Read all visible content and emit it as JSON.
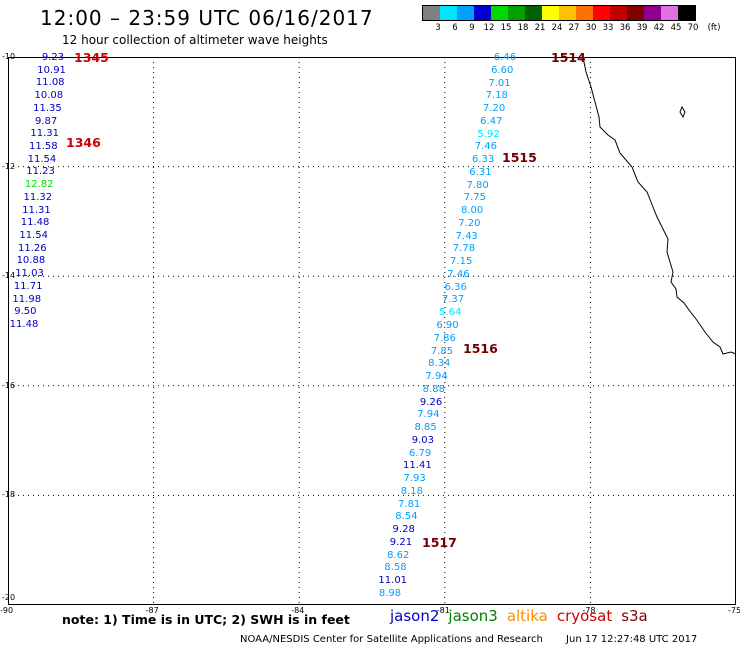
{
  "title": "12:00 – 23:59 UTC 06/16/2017",
  "subtitle": "12 hour collection of altimeter wave heights",
  "color_scale": {
    "colors": [
      "#808080",
      "#00e5ff",
      "#00a0ff",
      "#0000d0",
      "#00d800",
      "#00a000",
      "#006000",
      "#ffff00",
      "#ffc000",
      "#ff7000",
      "#ff0000",
      "#c00000",
      "#800000",
      "#900090",
      "#e070e0",
      "#000000"
    ],
    "labels": [
      "3",
      "6",
      "9",
      "12",
      "15",
      "18",
      "21",
      "24",
      "27",
      "30",
      "33",
      "36",
      "39",
      "42",
      "45",
      "70"
    ],
    "unit": "(ft)"
  },
  "map": {
    "lat_range": [
      -20,
      -10
    ],
    "lon_range": [
      -90,
      -75
    ],
    "lat_ticks": [
      "-10",
      "-12",
      "-14",
      "-16",
      "-18",
      "-20"
    ],
    "lon_ticks": [
      "-90",
      "-87",
      "-84",
      "-81",
      "-78",
      "-75"
    ]
  },
  "tracks": [
    {
      "satellite": "jason2",
      "color_group": "west",
      "values": [
        "9.23",
        "10.91",
        "11.08",
        "10.08",
        "11.35",
        "9.87",
        "11.31",
        "11.58",
        "11.54",
        "11.23",
        "12.82",
        "11.32",
        "11.31",
        "11.48",
        "11.54",
        "11.26",
        "10.88",
        "11.03",
        "11.71",
        "11.98",
        "9.50",
        "11.48"
      ],
      "colors": [
        "#0000c0",
        "#0000c0",
        "#0000c0",
        "#0000c0",
        "#0000c0",
        "#0000c0",
        "#0000c0",
        "#0000c0",
        "#0000c0",
        "#0000c0",
        "#00e000",
        "#0000c0",
        "#0000c0",
        "#0000c0",
        "#0000c0",
        "#0000c0",
        "#0000c0",
        "#0000c0",
        "#0000c0",
        "#0000c0",
        "#0000c0",
        "#0000c0"
      ]
    },
    {
      "satellite": "jason2",
      "color_group": "east",
      "values": [
        "6.46",
        "6.60",
        "7.01",
        "7.18",
        "7.20",
        "6.47",
        "5.92",
        "7.46",
        "6.33",
        "6.31",
        "7.80",
        "7.75",
        "8.00",
        "7.20",
        "7.43",
        "7.78",
        "7.15",
        "7.46",
        "6.36",
        "7.37",
        "5.64",
        "6.90",
        "7.86",
        "7.85",
        "8.34",
        "7.94",
        "8.88",
        "9.26",
        "7.94",
        "8.85",
        "9.03",
        "6.79",
        "11.41",
        "7.93",
        "8.18",
        "7.81",
        "8.54",
        "9.28",
        "9.21",
        "8.62",
        "8.58",
        "11.01",
        "8.98"
      ],
      "colors": [
        "#00a0ff",
        "#00a0ff",
        "#00a0ff",
        "#00a0ff",
        "#00a0ff",
        "#00a0ff",
        "#00e5ff",
        "#00a0ff",
        "#00a0ff",
        "#00a0ff",
        "#00a0ff",
        "#00a0ff",
        "#00a0ff",
        "#00a0ff",
        "#00a0ff",
        "#00a0ff",
        "#00a0ff",
        "#00a0ff",
        "#00a0ff",
        "#00a0ff",
        "#00e5ff",
        "#00a0ff",
        "#00a0ff",
        "#00a0ff",
        "#00a0ff",
        "#00a0ff",
        "#00a0ff",
        "#0000c0",
        "#00a0ff",
        "#00a0ff",
        "#0000c0",
        "#00a0ff",
        "#0000c0",
        "#00a0ff",
        "#00a0ff",
        "#00a0ff",
        "#00a0ff",
        "#0000c0",
        "#0000c0",
        "#00a0ff",
        "#00a0ff",
        "#0000c0",
        "#00a0ff"
      ]
    }
  ],
  "pass_labels": [
    "1345",
    "1346",
    "1514",
    "1515",
    "1516",
    "1517"
  ],
  "note": "note: 1) Time is in UTC; 2) SWH is in feet",
  "satellites": [
    {
      "name": "jason2",
      "color": "#0000c0"
    },
    {
      "name": "jason3",
      "color": "#008000"
    },
    {
      "name": "altika",
      "color": "#ff8c00"
    },
    {
      "name": "cryosat",
      "color": "#d00000"
    },
    {
      "name": "s3a",
      "color": "#800000"
    }
  ],
  "footer": {
    "credit": "NOAA/NESDIS Center for Satellite Applications and Research",
    "timestamp": "Jun 17 12:27:48 UTC 2017"
  }
}
